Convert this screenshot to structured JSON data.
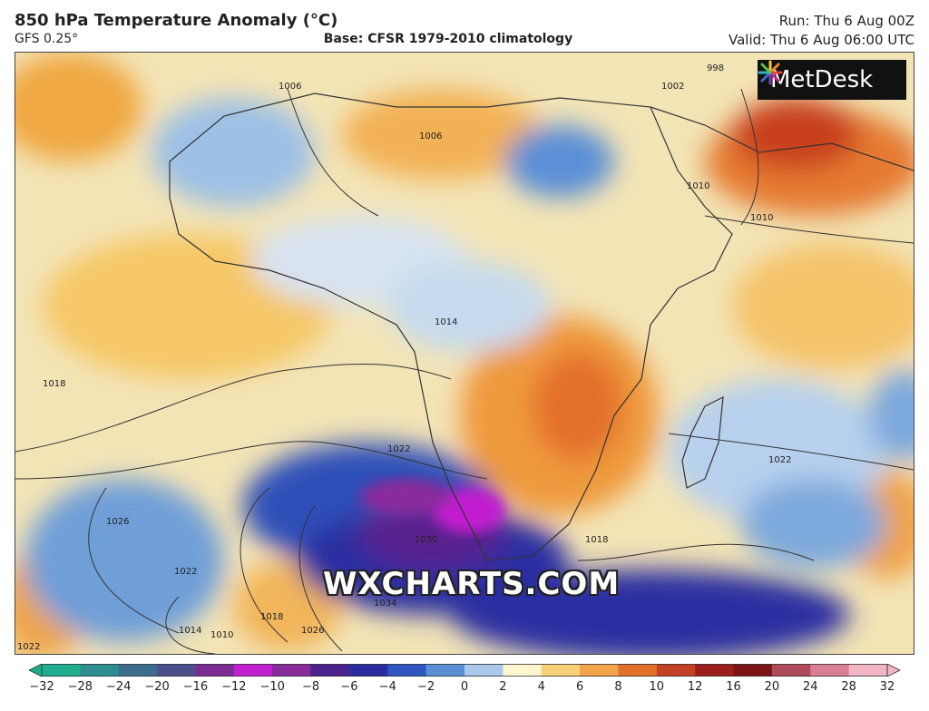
{
  "header": {
    "title": "850 hPa Temperature Anomaly (°C)",
    "model": "GFS 0.25°",
    "base": "Base: CFSR 1979-2010 climatology",
    "run": "Run: Thu 6 Aug 00Z",
    "valid": "Valid: Thu 6 Aug 06:00 UTC"
  },
  "logo": {
    "text": "MetDesk",
    "icon": "metdesk-starburst-icon"
  },
  "watermark": "WXCHARTS.COM",
  "map": {
    "region": "Africa and adjacent oceans",
    "isobar_labels": [
      "1018",
      "1022",
      "1026",
      "1022",
      "1014",
      "1010",
      "1018",
      "1026",
      "1030",
      "1034",
      "1022",
      "1006",
      "1006",
      "1002",
      "998",
      "1010",
      "1010",
      "1014",
      "1022",
      "1018"
    ]
  },
  "colorbar": {
    "ticks": [
      "−32",
      "−28",
      "−24",
      "−20",
      "−16",
      "−12",
      "−10",
      "−8",
      "−6",
      "−4",
      "−2",
      "0",
      "2",
      "4",
      "6",
      "8",
      "10",
      "12",
      "16",
      "20",
      "24",
      "28",
      "32"
    ],
    "colors": [
      "#1fae8d",
      "#2c8e8f",
      "#3d6d8c",
      "#4c4f8a",
      "#7a2c92",
      "#c21fd0",
      "#8a2b9b",
      "#4a238f",
      "#2a2da0",
      "#2f56c0",
      "#5a8fd6",
      "#a9c8ea",
      "#fff6d0",
      "#f7d07a",
      "#f1a44a",
      "#e2702d",
      "#c44224",
      "#9d1f1b",
      "#7b1514",
      "#ae4a5a",
      "#d97f93",
      "#f2b5c4"
    ]
  }
}
